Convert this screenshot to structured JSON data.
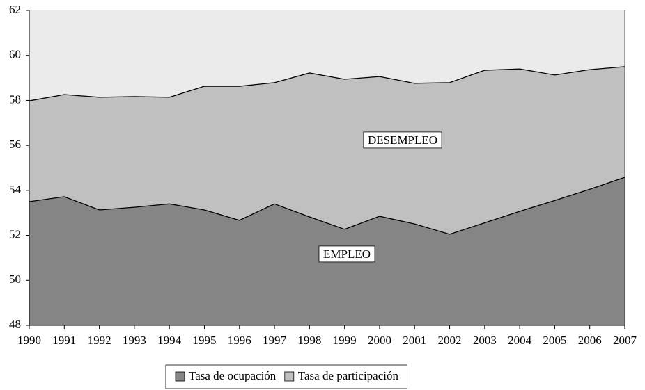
{
  "chart_data": {
    "type": "area",
    "categories": [
      "1990",
      "1991",
      "1992",
      "1993",
      "1994",
      "1995",
      "1996",
      "1997",
      "1998",
      "1999",
      "2000",
      "2001",
      "2002",
      "2003",
      "2004",
      "2005",
      "2006",
      "2007"
    ],
    "series": [
      {
        "name": "Tasa de ocupación",
        "color": "#858585",
        "values": [
          53.5,
          53.72,
          53.13,
          53.25,
          53.4,
          53.13,
          52.67,
          53.4,
          52.82,
          52.27,
          52.85,
          52.51,
          52.05,
          52.56,
          53.07,
          53.55,
          54.05,
          54.58
        ]
      },
      {
        "name": "Tasa de participación",
        "color": "#c0c0c0",
        "values": [
          57.98,
          58.26,
          58.14,
          58.17,
          58.14,
          58.63,
          58.63,
          58.79,
          59.22,
          58.94,
          59.06,
          58.76,
          58.79,
          59.34,
          59.4,
          59.13,
          59.37,
          59.5
        ]
      }
    ],
    "annotations": [
      "DESEMPLEO",
      "EMPLEO"
    ],
    "background": "#ebebeb",
    "ylim": [
      48,
      62
    ],
    "yticks": [
      48,
      50,
      52,
      54,
      56,
      58,
      60,
      62
    ],
    "legend": "bottom"
  }
}
